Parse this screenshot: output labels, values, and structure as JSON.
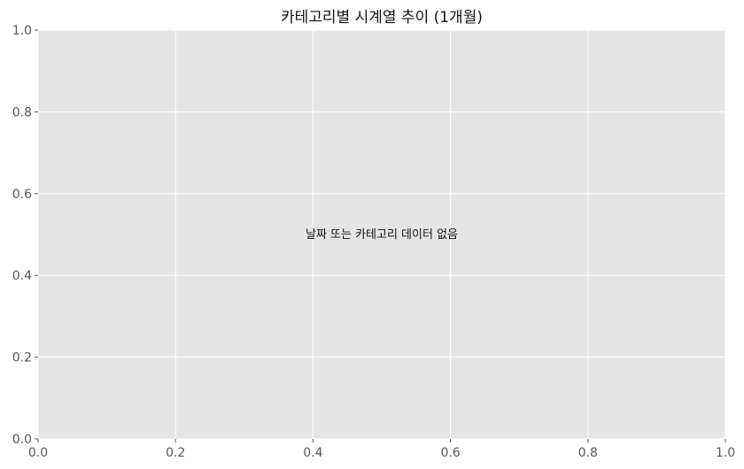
{
  "chart_data": {
    "type": "line",
    "title": "카테고리별 시계열 추이 (1개월)",
    "xlabel": "",
    "ylabel": "",
    "xlim": [
      0,
      1
    ],
    "ylim": [
      0,
      1
    ],
    "x_ticks": [
      "0.0",
      "0.2",
      "0.4",
      "0.6",
      "0.8",
      "1.0"
    ],
    "y_ticks": [
      "0.0",
      "0.2",
      "0.4",
      "0.6",
      "0.8",
      "1.0"
    ],
    "grid": true,
    "series": [],
    "annotation": {
      "text": "날짜 또는 카테고리 데이터 없음",
      "x": 0.5,
      "y": 0.5
    },
    "colors": {
      "plot_background": "#e5e5e5",
      "grid": "#ffffff",
      "text": "#111111",
      "tick_text": "#555555"
    }
  }
}
